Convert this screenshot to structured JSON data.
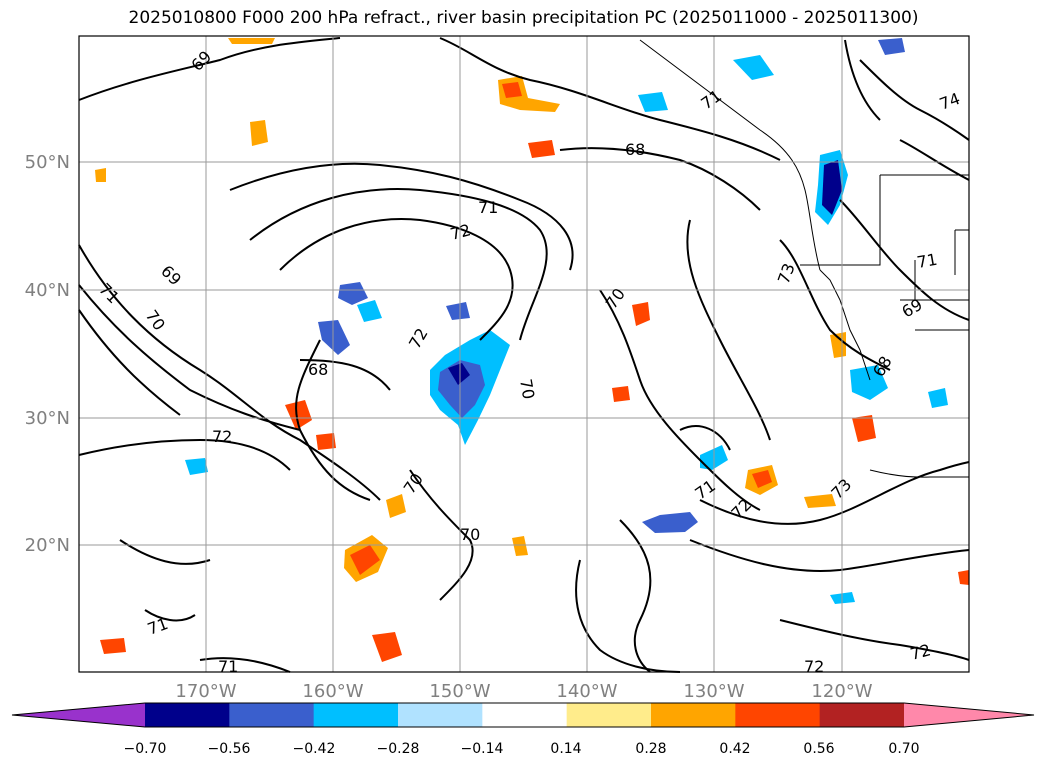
{
  "title": "2025010800 F000 200 hPa refract., river basin precipitation PC (2025011000 - 2025011300)",
  "map": {
    "lat_labels": [
      "50°N",
      "40°N",
      "30°N",
      "20°N"
    ],
    "lon_labels": [
      "170°W",
      "160°W",
      "150°W",
      "140°W",
      "130°W",
      "120°W"
    ],
    "label_color": "#808080",
    "contour_labels": [
      "69",
      "69",
      "71",
      "70",
      "72",
      "71",
      "72",
      "68",
      "68",
      "72",
      "70",
      "71",
      "70",
      "70",
      "70",
      "71",
      "72",
      "73",
      "73",
      "71",
      "69",
      "68",
      "72",
      "72",
      "74",
      "71",
      "71"
    ]
  },
  "colorbar": {
    "colors": [
      "#9932CC",
      "#00008B",
      "#3A5FCD",
      "#00BFFF",
      "#B0E2FF",
      "#FFFFFF",
      "#FFEC8B",
      "#FFA500",
      "#FF4500",
      "#B22222",
      "#FF88AA"
    ],
    "tick_labels": [
      "−0.70",
      "−0.56",
      "−0.42",
      "−0.28",
      "−0.14",
      "0.14",
      "0.28",
      "0.42",
      "0.56",
      "0.70"
    ]
  }
}
